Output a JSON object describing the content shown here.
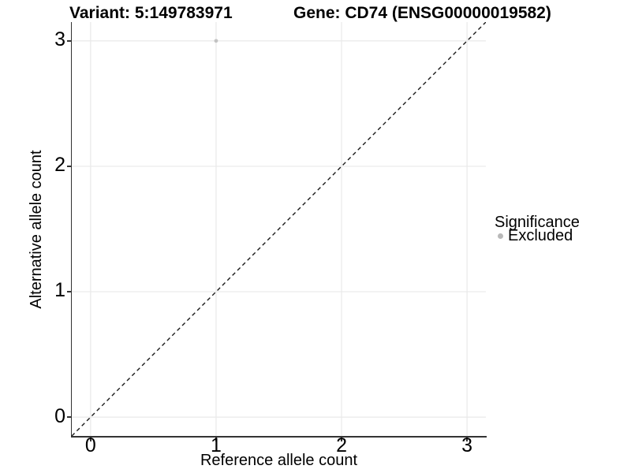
{
  "chart_data": {
    "type": "scatter",
    "title_left": "Variant: 5:149783971",
    "title_right": "Gene: CD74 (ENSG00000019582)",
    "xlabel": "Reference allele count",
    "ylabel": "Alternative allele count",
    "xlim": [
      -0.15,
      3.15
    ],
    "ylim": [
      -0.15,
      3.15
    ],
    "xticks": [
      0,
      1,
      2,
      3
    ],
    "yticks": [
      0,
      1,
      2,
      3
    ],
    "grid": "major",
    "points": [
      {
        "x": 1,
        "y": 3,
        "series": "Excluded"
      }
    ],
    "reference_line": {
      "slope": 1,
      "intercept": 0,
      "style": "dashed"
    },
    "legend": {
      "title": "Significance",
      "position": "right",
      "entries": [
        {
          "label": "Excluded",
          "marker": "circle",
          "color": "#b9b9b9"
        }
      ]
    }
  },
  "colors": {
    "background": "#ffffff",
    "gridline": "#e9e9e9",
    "axis_line": "#333333",
    "tick_mark": "#333333",
    "dashed_line": "#1a1a1a",
    "point": "#c2c2c2",
    "text": "#000000"
  }
}
